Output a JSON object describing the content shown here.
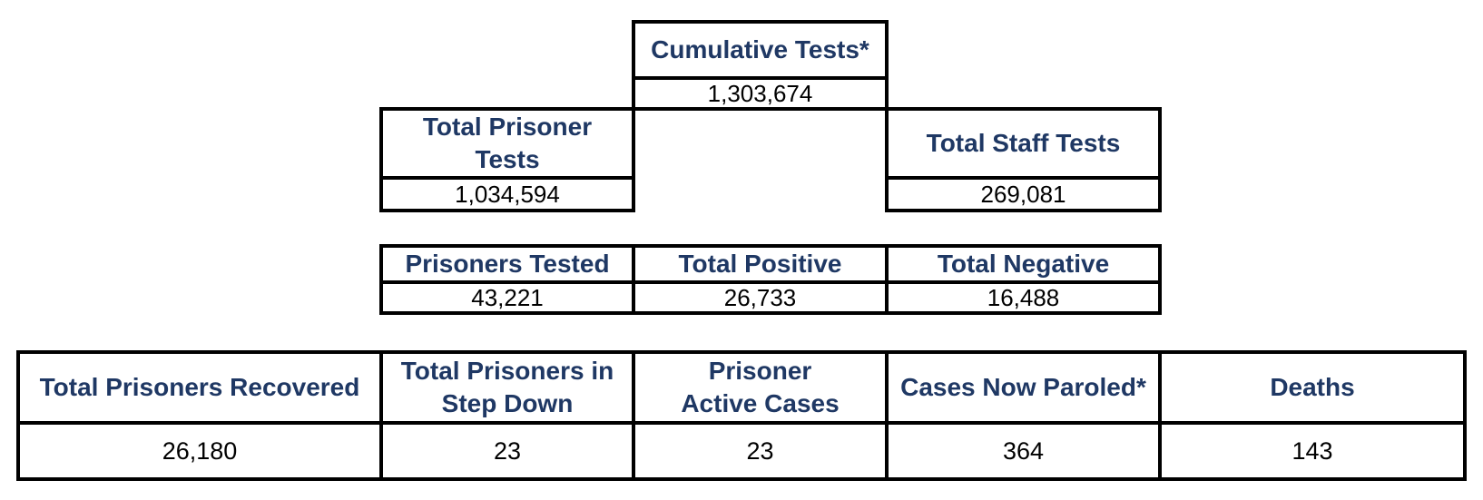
{
  "cumulative": {
    "label": "Cumulative Tests*",
    "value": "1,303,674"
  },
  "prisoner_tests": {
    "label": "Total Prisoner Tests",
    "value": "1,034,594"
  },
  "staff_tests": {
    "label": "Total Staff Tests",
    "value": "269,081"
  },
  "prisoners_tested": {
    "label": "Prisoners Tested",
    "value": "43,221"
  },
  "total_positive": {
    "label": "Total Positive",
    "value": "26,733"
  },
  "total_negative": {
    "label": "Total Negative",
    "value": "16,488"
  },
  "outcomes": [
    {
      "label": "Total Prisoners Recovered",
      "value": "26,180"
    },
    {
      "label": "Total Prisoners in Step Down",
      "value": "23"
    },
    {
      "label": "Prisoner Active Cases",
      "value": "23"
    },
    {
      "label": "Cases Now Paroled*",
      "value": "364"
    },
    {
      "label": "Deaths",
      "value": "143"
    }
  ]
}
